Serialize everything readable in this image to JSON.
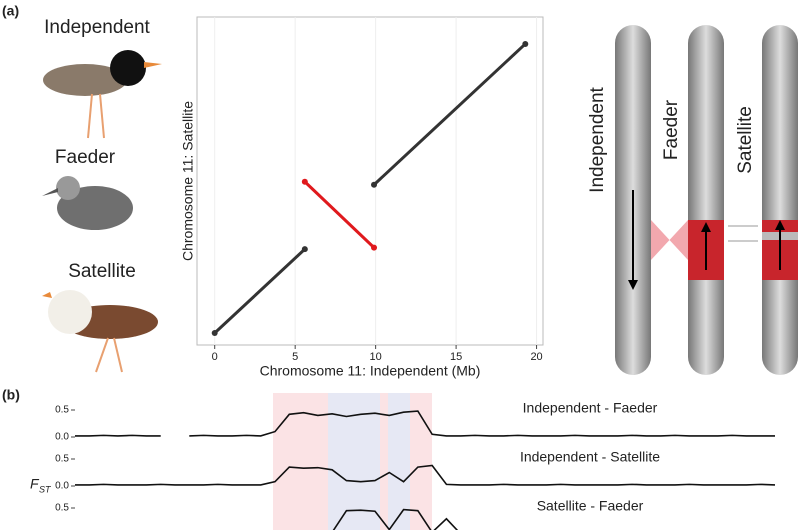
{
  "panel_labels": [
    "(a)",
    "(b)"
  ],
  "birds": [
    "Independent",
    "Faeder",
    "Satellite"
  ],
  "diagram": [
    "Independent",
    "Faeder",
    "Satellite"
  ],
  "fst_label": {
    "main": "F",
    "sub": "ST"
  },
  "chart_data": [
    {
      "type": "scatter",
      "xlabel": "Chromosome 11: Independent (Mb)",
      "ylabel": "Chromosome 11: Satellite",
      "xlim": [
        -1.1,
        20.4
      ],
      "ylim": [
        -0.8,
        21.1
      ],
      "xticks": [
        0,
        5,
        10,
        15,
        20
      ],
      "grid": true,
      "series": [
        {
          "color": "#333333",
          "x": [
            0,
            5.6
          ],
          "values": [
            0,
            5.6
          ]
        },
        {
          "color": "#e0191d",
          "x": [
            5.6,
            9.9
          ],
          "values": [
            10.1,
            5.7
          ]
        },
        {
          "color": "#333333",
          "x": [
            9.9,
            19.3
          ],
          "values": [
            9.9,
            19.3
          ]
        }
      ]
    },
    {
      "type": "line",
      "title": "Independent - Faeder",
      "ylim": [
        0,
        0.6
      ],
      "yticks": [
        {
          "value": 0,
          "label": "0.0"
        },
        0.5
      ],
      "color": "#111111",
      "values": [
        0.02,
        0.02,
        0.03,
        0.02,
        0.03,
        0.02,
        0.02,
        null,
        0.02,
        0.03,
        0.02,
        0.02,
        0.03,
        0.02,
        0.1,
        0.42,
        0.45,
        0.4,
        0.43,
        0.38,
        0.42,
        0.44,
        0.4,
        0.46,
        0.48,
        0.05,
        0.02,
        0.02,
        0.03,
        0.02,
        0.02,
        0.03,
        0.02,
        0.02,
        0.02,
        0.03,
        0.02,
        0.02,
        0.02,
        0.03,
        0.02,
        0.02,
        0.03,
        0.02,
        0.02,
        0.02,
        0.03,
        0.02,
        0.02,
        0.02
      ]
    },
    {
      "type": "line",
      "title": "Independent - Satellite",
      "ylim": [
        0,
        0.6
      ],
      "yticks": [
        {
          "value": 0,
          "label": "0.0"
        },
        0.5
      ],
      "color": "#111111",
      "values": [
        0.02,
        0.02,
        0.03,
        0.02,
        0.02,
        0.02,
        0.03,
        0.02,
        0.02,
        0.02,
        0.03,
        0.02,
        0.02,
        0.02,
        0.08,
        0.35,
        0.33,
        0.34,
        0.3,
        0.1,
        0.08,
        0.1,
        0.25,
        0.08,
        0.35,
        0.38,
        0.03,
        0.02,
        0.02,
        0.02,
        0.03,
        0.02,
        0.02,
        0.02,
        0.03,
        0.02,
        0.02,
        0.02,
        0.02,
        0.03,
        0.02,
        0.02,
        0.02,
        0.03,
        0.02,
        0.02,
        0.02,
        0.02,
        0.03,
        0.02
      ]
    },
    {
      "type": "line",
      "title": "Satellite - Faeder",
      "ylim": [
        0,
        0.6
      ],
      "yticks": [
        0.5
      ],
      "color": "#111111",
      "values": [
        0.02,
        0.02,
        0.02,
        0.02,
        0.02,
        0.02,
        0.02,
        0.02,
        0.02,
        0.02,
        0.02,
        0.02,
        0.02,
        0.02,
        0.02,
        0.02,
        0.02,
        0.02,
        0.05,
        0.45,
        0.46,
        0.44,
        0.1,
        0.47,
        0.45,
        0.05,
        0.3,
        0.02,
        0.02,
        0.02,
        0.02,
        0.02,
        0.02,
        0.02,
        0.02,
        0.02,
        0.02,
        0.02,
        0.02,
        0.02,
        0.02,
        0.02,
        0.02,
        0.02,
        0.02,
        0.02,
        0.02,
        0.02,
        0.02,
        0.02
      ]
    }
  ]
}
